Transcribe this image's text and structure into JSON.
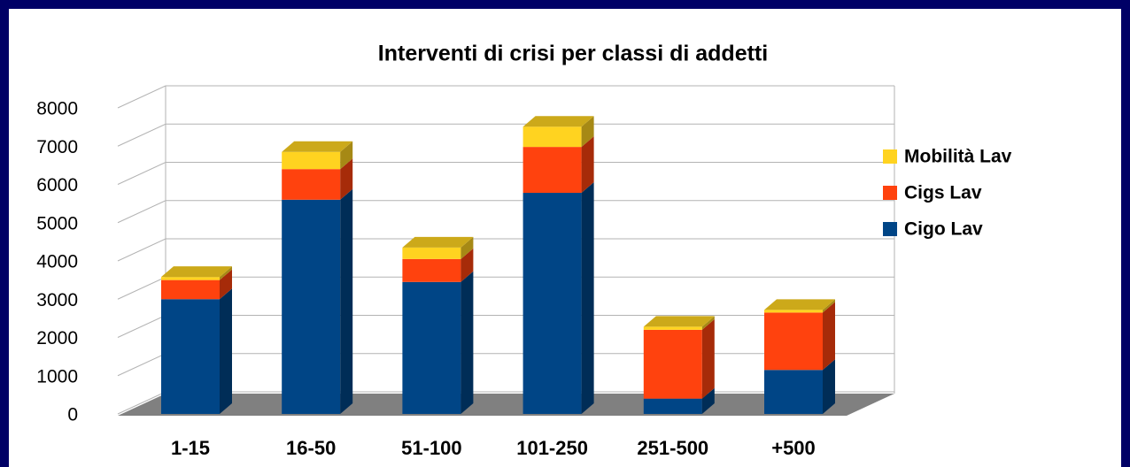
{
  "chart_data": {
    "type": "bar3d_stacked",
    "title": "Interventi di crisi per classi di addetti",
    "categories": [
      "1-15",
      "16-50",
      "51-100",
      "101-250",
      "251-500",
      "+500"
    ],
    "series": [
      {
        "name": "Cigo Lav",
        "color": "#004586",
        "values": [
          3000,
          5600,
          3450,
          5780,
          400,
          1150
        ]
      },
      {
        "name": "Cigs Lav",
        "color": "#ff420e",
        "values": [
          500,
          800,
          600,
          1200,
          1800,
          1500
        ]
      },
      {
        "name": "Mobilità Lav",
        "color": "#ffd320",
        "values": [
          80,
          450,
          300,
          530,
          80,
          70
        ]
      }
    ],
    "ylim": [
      0,
      8000
    ],
    "yticks": [
      0,
      1000,
      2000,
      3000,
      4000,
      5000,
      6000,
      7000,
      8000
    ],
    "grid": true,
    "legend": "right"
  }
}
